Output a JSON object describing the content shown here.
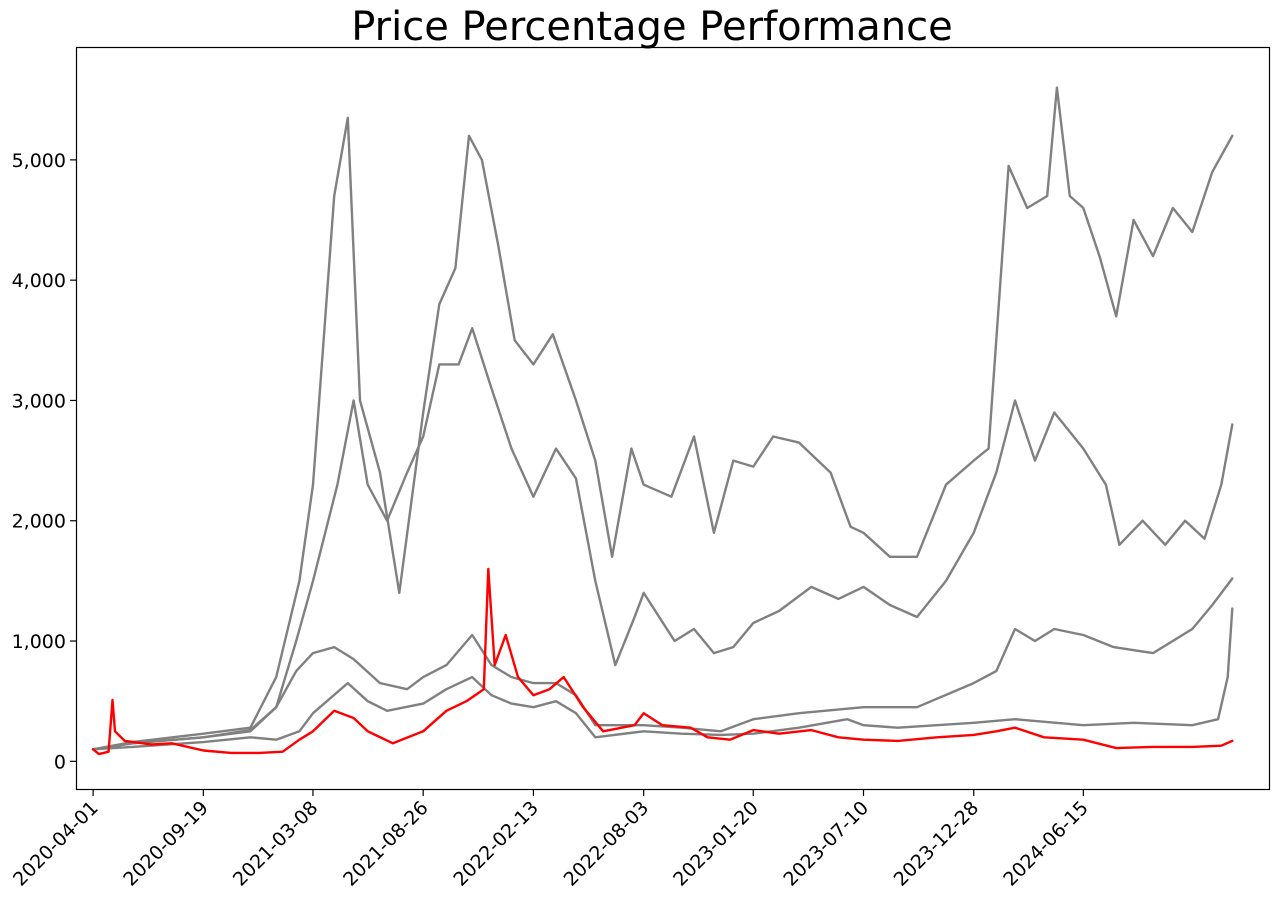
{
  "chart_data": {
    "type": "line",
    "title": "Price Percentage Performance",
    "xlabel": "",
    "ylabel": "",
    "x_ticks": [
      "2020-04-01",
      "2020-09-19",
      "2021-03-08",
      "2021-08-26",
      "2022-02-13",
      "2022-08-03",
      "2023-01-20",
      "2023-07-10",
      "2023-12-28",
      "2024-06-15"
    ],
    "y_ticks": [
      0,
      1000,
      2000,
      3000,
      4000,
      5000
    ],
    "y_tick_labels": [
      "0",
      "1,000",
      "2,000",
      "3,000",
      "4,000",
      "5,000"
    ],
    "xlim": [
      "2020-03-07",
      "2025-03-30"
    ],
    "ylim": [
      -230,
      5930
    ],
    "grid": false,
    "legend": "none",
    "series": [
      {
        "color": "#808080",
        "points": [
          [
            "2020-04-01",
            100
          ],
          [
            "2020-06-01",
            160
          ],
          [
            "2020-09-19",
            230
          ],
          [
            "2020-12-01",
            280
          ],
          [
            "2021-01-10",
            700
          ],
          [
            "2021-02-15",
            1500
          ],
          [
            "2021-03-08",
            2300
          ],
          [
            "2021-04-10",
            4700
          ],
          [
            "2021-05-01",
            5350
          ],
          [
            "2021-05-20",
            3000
          ],
          [
            "2021-06-20",
            2400
          ],
          [
            "2021-07-20",
            1400
          ],
          [
            "2021-08-26",
            2900
          ],
          [
            "2021-09-20",
            3800
          ],
          [
            "2021-10-15",
            4100
          ],
          [
            "2021-11-05",
            5200
          ],
          [
            "2021-11-25",
            5000
          ],
          [
            "2021-12-20",
            4300
          ],
          [
            "2022-01-15",
            3500
          ],
          [
            "2022-02-13",
            3300
          ],
          [
            "2022-03-15",
            3550
          ],
          [
            "2022-04-20",
            3000
          ],
          [
            "2022-05-20",
            2500
          ],
          [
            "2022-06-15",
            1700
          ],
          [
            "2022-07-15",
            2600
          ],
          [
            "2022-08-03",
            2300
          ],
          [
            "2022-09-15",
            2200
          ],
          [
            "2022-10-20",
            2700
          ],
          [
            "2022-11-20",
            1900
          ],
          [
            "2022-12-20",
            2500
          ],
          [
            "2023-01-20",
            2450
          ],
          [
            "2023-02-20",
            2700
          ],
          [
            "2023-04-01",
            2650
          ],
          [
            "2023-05-20",
            2400
          ],
          [
            "2023-06-20",
            1950
          ],
          [
            "2023-07-10",
            1900
          ],
          [
            "2023-08-20",
            1700
          ],
          [
            "2023-10-01",
            1700
          ],
          [
            "2023-11-15",
            2300
          ],
          [
            "2023-12-28",
            2500
          ],
          [
            "2024-01-20",
            2600
          ],
          [
            "2024-02-20",
            4950
          ],
          [
            "2024-03-20",
            4600
          ],
          [
            "2024-04-20",
            4700
          ],
          [
            "2024-05-05",
            5600
          ],
          [
            "2024-05-25",
            4700
          ],
          [
            "2024-06-15",
            4600
          ],
          [
            "2024-07-10",
            4200
          ],
          [
            "2024-08-05",
            3700
          ],
          [
            "2024-09-01",
            4500
          ],
          [
            "2024-10-01",
            4200
          ],
          [
            "2024-11-01",
            4600
          ],
          [
            "2024-12-01",
            4400
          ],
          [
            "2025-01-01",
            4900
          ],
          [
            "2025-02-01",
            5200
          ]
        ]
      },
      {
        "color": "#808080",
        "points": [
          [
            "2020-04-01",
            100
          ],
          [
            "2020-06-01",
            150
          ],
          [
            "2020-09-19",
            200
          ],
          [
            "2020-12-01",
            250
          ],
          [
            "2021-01-10",
            450
          ],
          [
            "2021-02-10",
            1000
          ],
          [
            "2021-03-08",
            1500
          ],
          [
            "2021-04-15",
            2300
          ],
          [
            "2021-05-10",
            3000
          ],
          [
            "2021-06-01",
            2300
          ],
          [
            "2021-07-01",
            2000
          ],
          [
            "2021-08-01",
            2400
          ],
          [
            "2021-08-26",
            2700
          ],
          [
            "2021-09-20",
            3300
          ],
          [
            "2021-10-20",
            3300
          ],
          [
            "2021-11-10",
            3600
          ],
          [
            "2021-12-10",
            3100
          ],
          [
            "2022-01-10",
            2600
          ],
          [
            "2022-02-13",
            2200
          ],
          [
            "2022-03-20",
            2600
          ],
          [
            "2022-04-20",
            2350
          ],
          [
            "2022-05-20",
            1500
          ],
          [
            "2022-06-20",
            800
          ],
          [
            "2022-07-20",
            1200
          ],
          [
            "2022-08-03",
            1400
          ],
          [
            "2022-09-20",
            1000
          ],
          [
            "2022-10-20",
            1100
          ],
          [
            "2022-11-20",
            900
          ],
          [
            "2022-12-20",
            950
          ],
          [
            "2023-01-20",
            1150
          ],
          [
            "2023-03-01",
            1250
          ],
          [
            "2023-04-20",
            1450
          ],
          [
            "2023-06-01",
            1350
          ],
          [
            "2023-07-10",
            1450
          ],
          [
            "2023-08-20",
            1300
          ],
          [
            "2023-10-01",
            1200
          ],
          [
            "2023-11-15",
            1500
          ],
          [
            "2023-12-28",
            1900
          ],
          [
            "2024-02-01",
            2400
          ],
          [
            "2024-03-01",
            3000
          ],
          [
            "2024-04-01",
            2500
          ],
          [
            "2024-05-01",
            2900
          ],
          [
            "2024-06-15",
            2600
          ],
          [
            "2024-07-20",
            2300
          ],
          [
            "2024-08-10",
            1800
          ],
          [
            "2024-09-15",
            2000
          ],
          [
            "2024-10-20",
            1800
          ],
          [
            "2024-11-20",
            2000
          ],
          [
            "2024-12-20",
            1850
          ],
          [
            "2025-01-15",
            2300
          ],
          [
            "2025-02-01",
            2800
          ]
        ]
      },
      {
        "color": "#808080",
        "points": [
          [
            "2020-04-01",
            100
          ],
          [
            "2020-06-01",
            150
          ],
          [
            "2020-09-19",
            200
          ],
          [
            "2020-12-01",
            260
          ],
          [
            "2021-01-10",
            450
          ],
          [
            "2021-02-10",
            750
          ],
          [
            "2021-03-08",
            900
          ],
          [
            "2021-04-10",
            950
          ],
          [
            "2021-05-10",
            850
          ],
          [
            "2021-06-20",
            650
          ],
          [
            "2021-08-01",
            600
          ],
          [
            "2021-08-26",
            700
          ],
          [
            "2021-10-01",
            800
          ],
          [
            "2021-11-10",
            1050
          ],
          [
            "2021-12-10",
            800
          ],
          [
            "2022-01-10",
            700
          ],
          [
            "2022-02-13",
            650
          ],
          [
            "2022-03-20",
            650
          ],
          [
            "2022-04-20",
            550
          ],
          [
            "2022-05-20",
            300
          ],
          [
            "2022-08-03",
            300
          ],
          [
            "2022-10-01",
            280
          ],
          [
            "2022-12-01",
            250
          ],
          [
            "2023-01-20",
            350
          ],
          [
            "2023-04-01",
            400
          ],
          [
            "2023-07-10",
            450
          ],
          [
            "2023-10-01",
            450
          ],
          [
            "2023-12-28",
            650
          ],
          [
            "2024-02-01",
            750
          ],
          [
            "2024-03-01",
            1100
          ],
          [
            "2024-04-01",
            1000
          ],
          [
            "2024-05-01",
            1100
          ],
          [
            "2024-06-15",
            1050
          ],
          [
            "2024-08-01",
            950
          ],
          [
            "2024-10-01",
            900
          ],
          [
            "2024-12-01",
            1100
          ],
          [
            "2025-01-01",
            1300
          ],
          [
            "2025-02-01",
            1520
          ]
        ]
      },
      {
        "color": "#808080",
        "points": [
          [
            "2020-04-01",
            100
          ],
          [
            "2020-06-01",
            120
          ],
          [
            "2020-09-19",
            160
          ],
          [
            "2020-12-01",
            200
          ],
          [
            "2021-01-10",
            180
          ],
          [
            "2021-02-15",
            250
          ],
          [
            "2021-03-08",
            400
          ],
          [
            "2021-05-01",
            650
          ],
          [
            "2021-06-01",
            500
          ],
          [
            "2021-07-01",
            420
          ],
          [
            "2021-08-26",
            480
          ],
          [
            "2021-10-01",
            600
          ],
          [
            "2021-11-10",
            700
          ],
          [
            "2021-12-10",
            550
          ],
          [
            "2022-01-10",
            480
          ],
          [
            "2022-02-13",
            450
          ],
          [
            "2022-03-20",
            500
          ],
          [
            "2022-04-20",
            400
          ],
          [
            "2022-05-20",
            200
          ],
          [
            "2022-08-03",
            250
          ],
          [
            "2022-10-01",
            230
          ],
          [
            "2022-12-01",
            220
          ],
          [
            "2023-01-20",
            230
          ],
          [
            "2023-04-01",
            280
          ],
          [
            "2023-06-15",
            350
          ],
          [
            "2023-07-10",
            300
          ],
          [
            "2023-09-01",
            280
          ],
          [
            "2023-11-01",
            300
          ],
          [
            "2023-12-28",
            320
          ],
          [
            "2024-03-01",
            350
          ],
          [
            "2024-06-15",
            300
          ],
          [
            "2024-09-01",
            320
          ],
          [
            "2024-12-01",
            300
          ],
          [
            "2025-01-10",
            350
          ],
          [
            "2025-01-25",
            700
          ],
          [
            "2025-02-01",
            1270
          ]
        ]
      },
      {
        "color": "#ff0000",
        "points": [
          [
            "2020-04-01",
            100
          ],
          [
            "2020-04-10",
            60
          ],
          [
            "2020-04-25",
            80
          ],
          [
            "2020-05-01",
            510
          ],
          [
            "2020-05-05",
            250
          ],
          [
            "2020-05-20",
            170
          ],
          [
            "2020-07-01",
            140
          ],
          [
            "2020-08-01",
            150
          ],
          [
            "2020-09-19",
            90
          ],
          [
            "2020-11-01",
            70
          ],
          [
            "2020-12-15",
            70
          ],
          [
            "2021-01-20",
            80
          ],
          [
            "2021-02-15",
            180
          ],
          [
            "2021-03-08",
            250
          ],
          [
            "2021-04-10",
            420
          ],
          [
            "2021-05-10",
            360
          ],
          [
            "2021-06-01",
            250
          ],
          [
            "2021-07-10",
            150
          ],
          [
            "2021-08-26",
            250
          ],
          [
            "2021-10-01",
            420
          ],
          [
            "2021-11-01",
            500
          ],
          [
            "2021-11-28",
            600
          ],
          [
            "2021-12-05",
            1600
          ],
          [
            "2021-12-15",
            800
          ],
          [
            "2022-01-01",
            1050
          ],
          [
            "2022-01-20",
            700
          ],
          [
            "2022-02-13",
            550
          ],
          [
            "2022-03-10",
            600
          ],
          [
            "2022-04-01",
            700
          ],
          [
            "2022-05-01",
            450
          ],
          [
            "2022-06-01",
            250
          ],
          [
            "2022-07-20",
            300
          ],
          [
            "2022-08-03",
            400
          ],
          [
            "2022-09-01",
            300
          ],
          [
            "2022-10-15",
            280
          ],
          [
            "2022-11-10",
            200
          ],
          [
            "2022-12-15",
            180
          ],
          [
            "2023-01-20",
            260
          ],
          [
            "2023-03-01",
            230
          ],
          [
            "2023-04-20",
            260
          ],
          [
            "2023-06-01",
            200
          ],
          [
            "2023-07-10",
            180
          ],
          [
            "2023-09-01",
            170
          ],
          [
            "2023-11-01",
            200
          ],
          [
            "2023-12-28",
            220
          ],
          [
            "2024-02-01",
            250
          ],
          [
            "2024-03-01",
            280
          ],
          [
            "2024-04-15",
            200
          ],
          [
            "2024-06-15",
            180
          ],
          [
            "2024-08-05",
            110
          ],
          [
            "2024-10-01",
            120
          ],
          [
            "2024-12-01",
            120
          ],
          [
            "2025-01-15",
            130
          ],
          [
            "2025-02-01",
            170
          ]
        ]
      }
    ]
  }
}
